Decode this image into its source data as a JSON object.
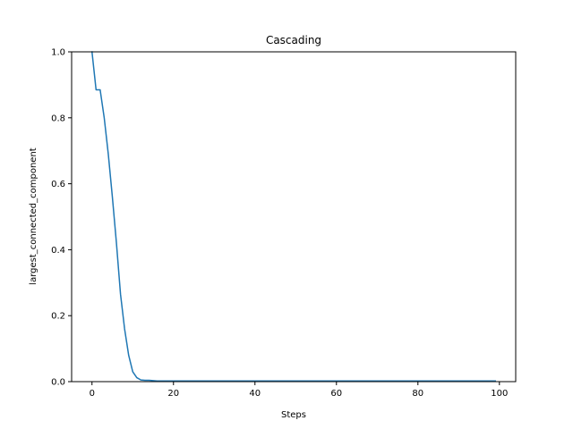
{
  "chart_data": {
    "type": "line",
    "title": "Cascading",
    "xlabel": "Steps",
    "ylabel": "largest_connected_component",
    "xlim": [
      -5,
      104
    ],
    "ylim": [
      0,
      1
    ],
    "xticks": [
      0,
      20,
      40,
      60,
      80,
      100
    ],
    "yticks": [
      0.0,
      0.2,
      0.4,
      0.6,
      0.8,
      1.0
    ],
    "xtick_labels": [
      "0",
      "20",
      "40",
      "60",
      "80",
      "100"
    ],
    "ytick_labels": [
      "0.0",
      "0.2",
      "0.4",
      "0.6",
      "0.8",
      "1.0"
    ],
    "grid": false,
    "legend": "none",
    "series": [
      {
        "color": "#1f77b4",
        "x": [
          0,
          1,
          2,
          3,
          4,
          5,
          6,
          7,
          8,
          9,
          10,
          11,
          12,
          13,
          14,
          15,
          16,
          17,
          18,
          19,
          20,
          30,
          40,
          50,
          60,
          70,
          80,
          90,
          99
        ],
        "y": [
          1.0,
          0.885,
          0.885,
          0.8,
          0.69,
          0.56,
          0.42,
          0.265,
          0.16,
          0.08,
          0.03,
          0.012,
          0.005,
          0.004,
          0.004,
          0.003,
          0.002,
          0.002,
          0.002,
          0.002,
          0.002,
          0.002,
          0.002,
          0.002,
          0.002,
          0.002,
          0.002,
          0.002,
          0.002
        ]
      }
    ]
  }
}
